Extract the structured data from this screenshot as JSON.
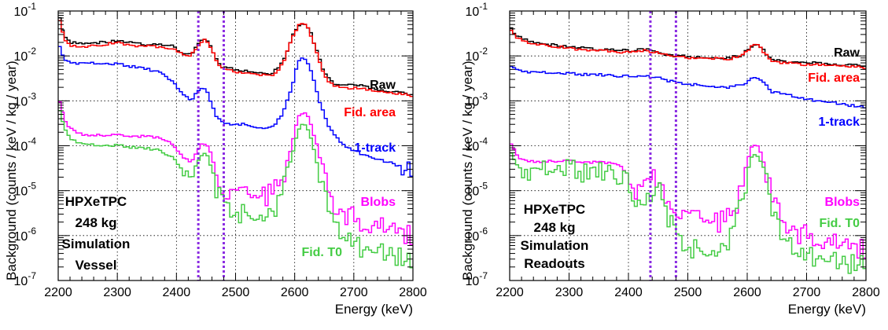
{
  "chart_data": [
    {
      "type": "line",
      "panel": "left",
      "xlabel": "Energy (keV)",
      "ylabel": "Background (counts / keV / kg / year)",
      "xlim": [
        2200,
        2800
      ],
      "ylim": [
        1e-07,
        0.1
      ],
      "yscale": "log",
      "xticks": [
        "2200",
        "2300",
        "2400",
        "2500",
        "2600",
        "2700",
        "2800"
      ],
      "yticks": [
        {
          "base": "10",
          "exp": "-7"
        },
        {
          "base": "10",
          "exp": "-6"
        },
        {
          "base": "10",
          "exp": "-5"
        },
        {
          "base": "10",
          "exp": "-4"
        },
        {
          "base": "10",
          "exp": "-3"
        },
        {
          "base": "10",
          "exp": "-2"
        },
        {
          "base": "10",
          "exp": "-1"
        }
      ],
      "grid": true,
      "vlines": [
        2437,
        2480
      ],
      "annotation": [
        "HPXeTPC",
        "248 kg",
        "Simulation",
        "Vessel"
      ],
      "series": [
        {
          "name": "Raw",
          "color": "#000000",
          "x": [
            2200,
            2210,
            2220,
            2250,
            2280,
            2300,
            2330,
            2360,
            2390,
            2410,
            2420,
            2430,
            2440,
            2450,
            2460,
            2470,
            2480,
            2500,
            2530,
            2560,
            2580,
            2595,
            2605,
            2615,
            2625,
            2640,
            2650,
            2665,
            2680,
            2700,
            2740,
            2780,
            2800
          ],
          "y": [
            0.09,
            0.03,
            0.02,
            0.019,
            0.02,
            0.022,
            0.019,
            0.018,
            0.017,
            0.012,
            0.01,
            0.013,
            0.022,
            0.025,
            0.015,
            0.007,
            0.0055,
            0.005,
            0.0045,
            0.004,
            0.007,
            0.025,
            0.048,
            0.055,
            0.04,
            0.01,
            0.004,
            0.0025,
            0.0022,
            0.0023,
            0.0018,
            0.0015,
            0.0014
          ]
        },
        {
          "name": "Fid. area",
          "color": "#ff0000",
          "x": [
            2200,
            2210,
            2220,
            2250,
            2280,
            2300,
            2330,
            2360,
            2390,
            2410,
            2420,
            2430,
            2440,
            2450,
            2460,
            2470,
            2480,
            2500,
            2530,
            2560,
            2580,
            2595,
            2605,
            2615,
            2625,
            2640,
            2650,
            2665,
            2680,
            2700,
            2740,
            2780,
            2800
          ],
          "y": [
            0.08,
            0.025,
            0.017,
            0.016,
            0.018,
            0.02,
            0.017,
            0.016,
            0.015,
            0.011,
            0.0095,
            0.012,
            0.02,
            0.023,
            0.013,
            0.0065,
            0.005,
            0.0045,
            0.004,
            0.0035,
            0.0065,
            0.023,
            0.045,
            0.052,
            0.037,
            0.009,
            0.0035,
            0.0022,
            0.0019,
            0.002,
            0.0016,
            0.0014,
            0.0013
          ]
        },
        {
          "name": "1-track",
          "color": "#0000ff",
          "x": [
            2200,
            2210,
            2230,
            2260,
            2300,
            2340,
            2380,
            2410,
            2425,
            2440,
            2450,
            2460,
            2470,
            2480,
            2510,
            2540,
            2560,
            2580,
            2595,
            2605,
            2615,
            2625,
            2640,
            2655,
            2670,
            2690,
            2710,
            2740,
            2770,
            2800
          ],
          "y": [
            0.02,
            0.008,
            0.007,
            0.0068,
            0.0065,
            0.0055,
            0.004,
            0.0015,
            0.001,
            0.002,
            0.0018,
            0.0008,
            0.0004,
            0.0003,
            0.0003,
            0.00025,
            0.00025,
            0.0005,
            0.002,
            0.007,
            0.01,
            0.006,
            0.0012,
            0.0003,
            0.00015,
            9e-05,
            7e-05,
            5e-05,
            4e-05,
            2.2e-05
          ]
        },
        {
          "name": "Blobs",
          "color": "#ff00ff",
          "x": [
            2200,
            2210,
            2220,
            2240,
            2270,
            2300,
            2340,
            2370,
            2390,
            2410,
            2425,
            2440,
            2450,
            2460,
            2470,
            2480,
            2500,
            2530,
            2560,
            2580,
            2595,
            2605,
            2615,
            2625,
            2640,
            2655,
            2670,
            2690,
            2710,
            2740,
            2770,
            2800
          ],
          "y": [
            0.0012,
            0.0004,
            0.00025,
            0.00018,
            0.00017,
            0.00017,
            0.00016,
            0.00015,
            0.00012,
            6e-05,
            4e-05,
            0.0001,
            0.00012,
            6e-05,
            2e-05,
            1e-05,
            8e-06,
            7e-06,
            8e-06,
            2e-05,
            0.0001,
            0.0004,
            0.0006,
            0.0004,
            8e-05,
            1e-05,
            3e-06,
            3e-06,
            2e-06,
            2e-06,
            1.5e-06,
            1e-06
          ]
        },
        {
          "name": "Fid. T0",
          "color": "#44cc44",
          "x": [
            2200,
            2210,
            2220,
            2240,
            2270,
            2300,
            2340,
            2370,
            2390,
            2410,
            2425,
            2440,
            2450,
            2460,
            2470,
            2480,
            2500,
            2530,
            2560,
            2580,
            2595,
            2605,
            2615,
            2625,
            2640,
            2655,
            2670,
            2690,
            2710,
            2740,
            2770,
            2800
          ],
          "y": [
            0.0008,
            0.00025,
            0.00015,
            0.00011,
            0.0001,
            0.0001,
            9e-05,
            8e-05,
            6e-05,
            3e-05,
            2e-05,
            6e-05,
            7e-05,
            3e-05,
            8e-06,
            4e-06,
            3e-06,
            2.5e-06,
            3e-06,
            1e-05,
            6e-05,
            0.0002,
            0.00035,
            0.0002,
            3e-05,
            4e-06,
            1.2e-06,
            1e-06,
            6e-07,
            5e-07,
            4e-07,
            2e-07
          ]
        }
      ]
    },
    {
      "type": "line",
      "panel": "right",
      "xlabel": "Energy (keV)",
      "ylabel": "Background (counts / keV / kg / year)",
      "xlim": [
        2200,
        2800
      ],
      "ylim": [
        1e-07,
        0.1
      ],
      "yscale": "log",
      "xticks": [
        "2200",
        "2300",
        "2400",
        "2500",
        "2600",
        "2700",
        "2800"
      ],
      "yticks": [
        {
          "base": "10",
          "exp": "-7"
        },
        {
          "base": "10",
          "exp": "-6"
        },
        {
          "base": "10",
          "exp": "-5"
        },
        {
          "base": "10",
          "exp": "-4"
        },
        {
          "base": "10",
          "exp": "-3"
        },
        {
          "base": "10",
          "exp": "-2"
        },
        {
          "base": "10",
          "exp": "-1"
        }
      ],
      "grid": true,
      "vlines": [
        2437,
        2480
      ],
      "annotation": [
        "HPXeTPC",
        "248 kg",
        "Simulation",
        "Readouts"
      ],
      "series": [
        {
          "name": "Raw",
          "color": "#000000",
          "x": [
            2200,
            2210,
            2230,
            2260,
            2300,
            2350,
            2400,
            2430,
            2445,
            2460,
            2480,
            2520,
            2560,
            2590,
            2605,
            2615,
            2625,
            2640,
            2660,
            2700,
            2750,
            2800
          ],
          "y": [
            0.045,
            0.03,
            0.022,
            0.018,
            0.016,
            0.014,
            0.013,
            0.014,
            0.013,
            0.011,
            0.01,
            0.0095,
            0.009,
            0.01,
            0.016,
            0.019,
            0.015,
            0.008,
            0.0075,
            0.007,
            0.0065,
            0.006
          ]
        },
        {
          "name": "Fid. area",
          "color": "#ff0000",
          "x": [
            2200,
            2210,
            2230,
            2260,
            2300,
            2350,
            2400,
            2430,
            2445,
            2460,
            2480,
            2520,
            2560,
            2590,
            2605,
            2615,
            2625,
            2640,
            2660,
            2700,
            2750,
            2800
          ],
          "y": [
            0.04,
            0.027,
            0.02,
            0.017,
            0.015,
            0.013,
            0.012,
            0.013,
            0.012,
            0.0105,
            0.0095,
            0.009,
            0.0085,
            0.0095,
            0.015,
            0.018,
            0.014,
            0.0075,
            0.007,
            0.0065,
            0.006,
            0.0055
          ]
        },
        {
          "name": "1-track",
          "color": "#0000ff",
          "x": [
            2200,
            2210,
            2230,
            2260,
            2300,
            2350,
            2400,
            2430,
            2445,
            2460,
            2480,
            2520,
            2560,
            2590,
            2605,
            2615,
            2625,
            2640,
            2660,
            2700,
            2750,
            2800
          ],
          "y": [
            0.006,
            0.005,
            0.0045,
            0.0042,
            0.004,
            0.0038,
            0.0035,
            0.0036,
            0.0034,
            0.003,
            0.0025,
            0.0022,
            0.002,
            0.0022,
            0.003,
            0.0035,
            0.0028,
            0.0016,
            0.0014,
            0.0011,
            0.0009,
            0.0007
          ]
        },
        {
          "name": "Blobs",
          "color": "#ff00ff",
          "x": [
            2200,
            2210,
            2220,
            2240,
            2270,
            2300,
            2350,
            2380,
            2395,
            2410,
            2425,
            2440,
            2450,
            2460,
            2470,
            2480,
            2500,
            2530,
            2560,
            2580,
            2595,
            2605,
            2615,
            2625,
            2640,
            2660,
            2700,
            2750,
            2800
          ],
          "y": [
            0.00012,
            7e-05,
            5e-05,
            4.5e-05,
            4.5e-05,
            4.5e-05,
            4.2e-05,
            4e-05,
            3e-05,
            1e-05,
            1e-05,
            2e-05,
            2e-05,
            1e-05,
            6e-06,
            4e-06,
            2.5e-06,
            2e-06,
            2e-06,
            4e-06,
            2e-05,
            8e-05,
            0.00012,
            6e-05,
            1e-05,
            1.5e-06,
            1e-06,
            8e-07,
            5e-07
          ]
        },
        {
          "name": "Fid. T0",
          "color": "#44cc44",
          "x": [
            2200,
            2210,
            2220,
            2240,
            2270,
            2300,
            2350,
            2380,
            2395,
            2410,
            2425,
            2440,
            2450,
            2460,
            2470,
            2480,
            2500,
            2530,
            2560,
            2580,
            2595,
            2605,
            2615,
            2625,
            2640,
            2660,
            2700,
            2750,
            2800
          ],
          "y": [
            8e-05,
            4e-05,
            3e-05,
            2.8e-05,
            2.8e-05,
            2.8e-05,
            2.6e-05,
            2.4e-05,
            1.8e-05,
            6e-06,
            5e-06,
            1e-05,
            1.2e-05,
            5e-06,
            2e-06,
            8e-07,
            5e-07,
            4e-07,
            5e-07,
            2e-06,
            1e-05,
            5e-05,
            7e-05,
            4e-05,
            5e-06,
            6e-07,
            4e-07,
            3e-07,
            2e-07
          ]
        }
      ]
    }
  ]
}
